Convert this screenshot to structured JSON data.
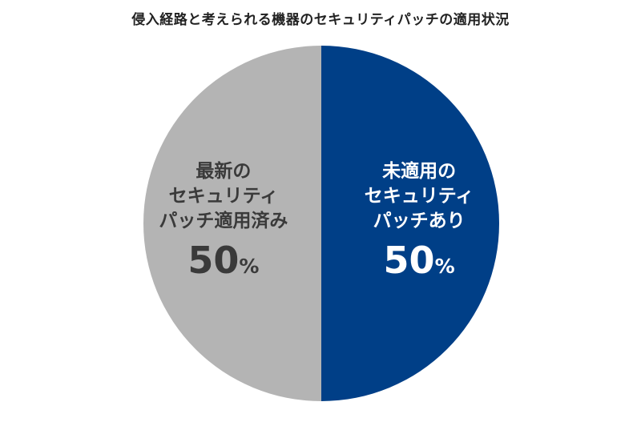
{
  "chart_data": {
    "type": "pie",
    "title": "侵入経路と考えられる機器のセキュリティパッチの適用状況",
    "slices": [
      {
        "label_lines": [
          "未適用の",
          "セキュリティ",
          "パッチあり"
        ],
        "value": 50,
        "unit": "%",
        "color": "#003f87",
        "text_color": "#ffffff"
      },
      {
        "label_lines": [
          "最新の",
          "セキュリティ",
          "パッチ適用済み"
        ],
        "value": 50,
        "unit": "%",
        "color": "#b4b4b4",
        "text_color": "#3a3a3a"
      }
    ],
    "start_angle_deg": 0,
    "direction": "clockwise"
  }
}
